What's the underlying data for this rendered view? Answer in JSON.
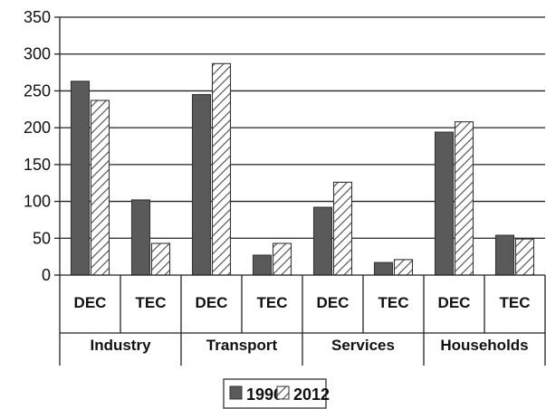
{
  "chart_data": {
    "type": "bar",
    "title": "",
    "xlabel": "",
    "ylabel": "",
    "ylim": [
      0,
      350
    ],
    "yticks": [
      0,
      50,
      100,
      150,
      200,
      250,
      300,
      350
    ],
    "grid": true,
    "legend_position": "bottom",
    "groups": [
      "Industry",
      "Transport",
      "Services",
      "Households"
    ],
    "categories": [
      "DEC",
      "TEC",
      "DEC",
      "TEC",
      "DEC",
      "TEC",
      "DEC",
      "TEC"
    ],
    "series": [
      {
        "name": "1990",
        "values": [
          263,
          102,
          245,
          27,
          92,
          17,
          194,
          54
        ],
        "color": "#5a5a5a",
        "pattern": "solid"
      },
      {
        "name": "2012",
        "values": [
          237,
          43,
          287,
          43,
          126,
          21,
          208,
          49
        ],
        "color": "#ffffff",
        "pattern": "hatch"
      }
    ]
  }
}
